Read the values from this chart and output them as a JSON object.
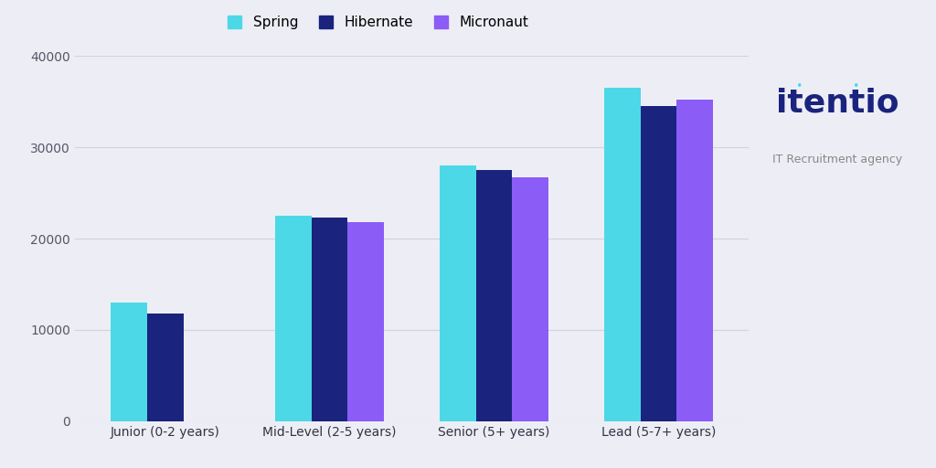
{
  "categories": [
    "Junior (0-2 years)",
    "Mid-Level (2-5 years)",
    "Senior (5+ years)",
    "Lead (5-7+ years)"
  ],
  "series": {
    "Spring": [
      13000,
      22500,
      28000,
      36500
    ],
    "Hibernate": [
      11800,
      22300,
      27500,
      34500
    ],
    "Micronaut": [
      0,
      21800,
      26700,
      35200
    ]
  },
  "colors": {
    "Spring": "#4DD8E8",
    "Hibernate": "#1A237E",
    "Micronaut": "#8B5CF6"
  },
  "ylim": [
    0,
    40000
  ],
  "yticks": [
    0,
    10000,
    20000,
    30000,
    40000
  ],
  "background_color": "#EDEEF5",
  "grid_color": "#D0D2DE",
  "bar_width": 0.22,
  "legend_labels": [
    "Spring",
    "Hibernate",
    "Micronaut"
  ],
  "logo_text_main": "itentio",
  "logo_text_sub": "IT Recruitment agency",
  "logo_color": "#1A237E",
  "logo_sub_color": "#888888",
  "logo_dot_color": "#4DD8E8"
}
